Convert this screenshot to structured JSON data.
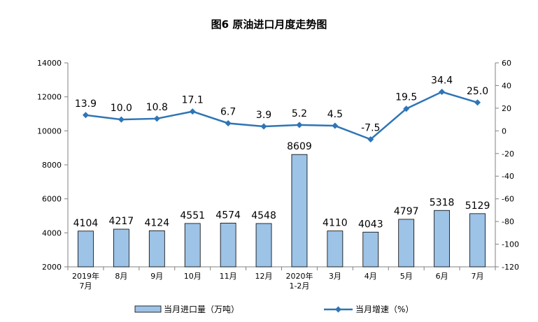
{
  "chart_data": {
    "type": "bar+line",
    "title": "图6 原油进口月度走势图",
    "categories": [
      [
        "2019年",
        "7月"
      ],
      [
        "8月"
      ],
      [
        "9月"
      ],
      [
        "10月"
      ],
      [
        "11月"
      ],
      [
        "12月"
      ],
      [
        "2020年",
        "1-2月"
      ],
      [
        "3月"
      ],
      [
        "4月"
      ],
      [
        "5月"
      ],
      [
        "6月"
      ],
      [
        "7月"
      ]
    ],
    "series": [
      {
        "name": "当月进口量（万吨）",
        "type": "bar",
        "axis": "left",
        "values": [
          4104,
          4217,
          4124,
          4551,
          4574,
          4548,
          8609,
          4110,
          4043,
          4797,
          5318,
          5129
        ],
        "labels": [
          "4104",
          "4217",
          "4124",
          "4551",
          "4574",
          "4548",
          "8609",
          "4110",
          "4043",
          "4797",
          "5318",
          "5129"
        ],
        "color": "#9DC3E6",
        "stroke": "#000000"
      },
      {
        "name": "当月增速（%）",
        "type": "line",
        "axis": "right",
        "values": [
          13.9,
          10.0,
          10.8,
          17.1,
          6.7,
          3.9,
          5.2,
          4.5,
          -7.5,
          19.5,
          34.4,
          25.0
        ],
        "labels": [
          "13.9",
          "10.0",
          "10.8",
          "17.1",
          "6.7",
          "3.9",
          "5.2",
          "4.5",
          "-7.5",
          "19.5",
          "34.4",
          "25.0"
        ],
        "color": "#2E75B6"
      }
    ],
    "y_left": {
      "min": 2000,
      "max": 14000,
      "ticks": [
        "2000",
        "4000",
        "6000",
        "8000",
        "10000",
        "12000",
        "14000"
      ]
    },
    "y_right": {
      "min": -120,
      "max": 60,
      "ticks": [
        "-120",
        "-100",
        "-80",
        "-60",
        "-40",
        "-20",
        "0",
        "20",
        "40",
        "60"
      ]
    },
    "grid": false,
    "legend": "bottom"
  }
}
